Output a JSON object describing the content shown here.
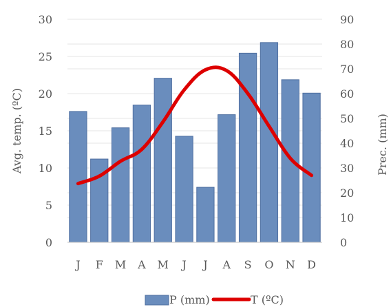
{
  "chart_data": {
    "type": "bar",
    "categories": [
      "J",
      "F",
      "M",
      "A",
      "M",
      "J",
      "J",
      "A",
      "S",
      "O",
      "N",
      "D"
    ],
    "series": [
      {
        "name": "P (mm)",
        "type": "bar",
        "axis": "right",
        "values": [
          52.8,
          33.6,
          46.2,
          55.4,
          66.2,
          42.8,
          22.2,
          51.5,
          76.3,
          80.6,
          65.6,
          60.2
        ]
      },
      {
        "name": "T (ºC)",
        "type": "line",
        "axis": "left",
        "values": [
          7.9,
          8.9,
          10.9,
          12.5,
          16.2,
          20.5,
          23.2,
          23.1,
          20.0,
          15.6,
          11.3,
          9.0
        ]
      }
    ],
    "ylabel_left": "Avg. temp. (ºC)",
    "ylabel_right": "Prec. (mm)",
    "ylim_left": [
      0,
      30
    ],
    "ylim_right": [
      0,
      90
    ],
    "yticks_left": [
      "0",
      "5",
      "10",
      "15",
      "20",
      "25",
      "30"
    ],
    "yticks_right": [
      "0",
      "10",
      "20",
      "30",
      "40",
      "50",
      "60",
      "70",
      "80",
      "90"
    ],
    "grid": true,
    "legend_position": "bottom",
    "colors": {
      "bar": "#6a8dbd",
      "bar_edge": "#4f6fa0",
      "line": "#dd0000",
      "grid": "#e6e6e6",
      "axis": "#bfbfbf"
    }
  }
}
